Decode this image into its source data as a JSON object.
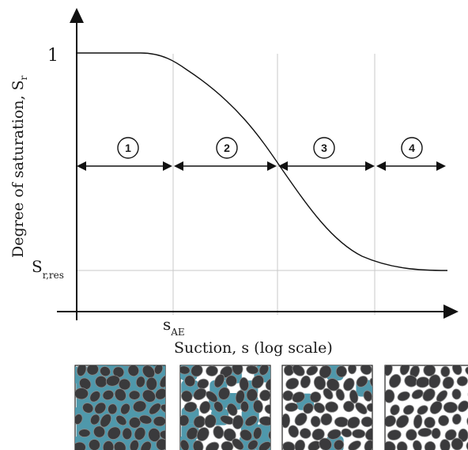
{
  "diagram": {
    "y_axis_label": "Degree of saturation, S",
    "y_axis_label_sub": "r",
    "x_axis_label": "Suction, s (log scale)",
    "y_tick_1": "1",
    "y_tick_res_main": "S",
    "y_tick_res_sub": "r,res",
    "x_tick_ae_main": "s",
    "x_tick_ae_sub": "AE",
    "zones": [
      {
        "label": "1",
        "pore_water": "saturated"
      },
      {
        "label": "2",
        "pore_water": "partly drained"
      },
      {
        "label": "3",
        "pore_water": "mostly drained"
      },
      {
        "label": "4",
        "pore_water": "residual"
      }
    ],
    "colors": {
      "water": "#4f98ab",
      "grain": "#3a3a3c",
      "grain_outline": "#8a8a8a",
      "axis": "#111111",
      "gridline": "#c8c8c8"
    }
  }
}
